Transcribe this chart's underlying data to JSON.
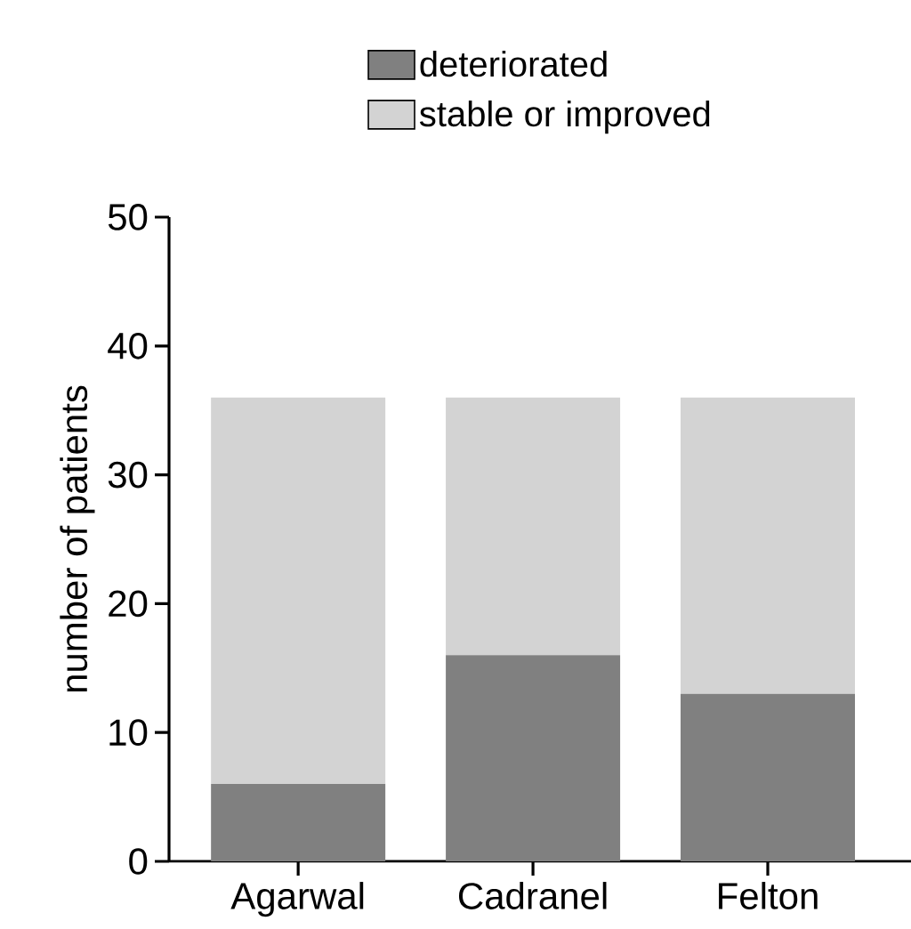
{
  "chart_data": {
    "type": "bar",
    "stacked": true,
    "ylabel": "number of patients",
    "categories": [
      "Agarwal",
      "Cadranel",
      "Felton"
    ],
    "series": [
      {
        "name": "deteriorated",
        "color": "#808080",
        "values": [
          6,
          16,
          13
        ]
      },
      {
        "name": "stable or improved",
        "color": "#d3d3d3",
        "values": [
          30,
          20,
          23
        ]
      }
    ],
    "ylim": [
      0,
      50
    ],
    "yticks": [
      0,
      10,
      20,
      30,
      40,
      50
    ],
    "legend": "top"
  }
}
